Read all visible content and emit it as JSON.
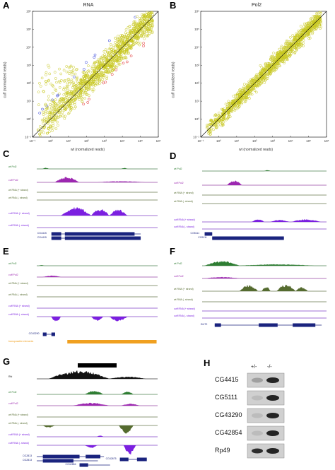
{
  "panels": {
    "A": {
      "letter": "A",
      "title": "RNA",
      "xlabel": "wt (normalized reads)",
      "ylabel": "cuff (normalized reads)"
    },
    "B": {
      "letter": "B",
      "title": "Pol2",
      "xlabel": "wt (normalized reads)",
      "ylabel": "cuff (normalized reads)"
    },
    "C": {
      "letter": "C",
      "tracks": [
        "wt Pol2",
        "cuff Pol2",
        "wt RNA (+ strand)",
        "wt RNA (- strand)",
        "cuff RNA (+ strand)",
        "cuff RNA (- strand)"
      ],
      "genes": [
        "CG4415",
        "CG4415"
      ]
    },
    "D": {
      "letter": "D",
      "tracks": [
        "wt Pol2",
        "cuff Pol2",
        "wt RNA (+ strand)",
        "wt RNA (- strand)",
        "cuff RNA (+ strand)",
        "cuff RNA (- strand)"
      ],
      "genes": [
        "CG5111"
      ]
    },
    "E": {
      "letter": "E",
      "tracks": [
        "wt Pol2",
        "cuff Pol2",
        "wt RNA (+ strand)",
        "wt RNA (- strand)",
        "cuff RNA (+ strand)",
        "cuff RNA (- strand)"
      ],
      "genes": [
        "CG43290"
      ],
      "te": "transposable elements"
    },
    "F": {
      "letter": "F",
      "tracks": [
        "wt Pol2",
        "cuff Pol2",
        "wt RNA (+ strand)",
        "wt RNA (- strand)",
        "cuff RNA (+ strand)",
        "cuff RNA (- strand)"
      ],
      "genes": [
        "GILT2"
      ]
    },
    "G": {
      "letter": "G",
      "tracks": [
        "Rhi",
        "wt Pol2",
        "cuff Pol2",
        "wt RNA (+ strand)",
        "wt RNA (- strand)",
        "cuff RNA (+ strand)",
        "cuff RNA (- strand)"
      ],
      "genes": [
        "CG2813",
        "CG2813",
        "CG42854",
        "CG42675"
      ]
    },
    "H": {
      "letter": "H",
      "lanes": [
        "+/-",
        "-/-"
      ],
      "rows": [
        "CG4415",
        "CG5111",
        "CG43290",
        "CG42854",
        "Rp49"
      ]
    }
  },
  "chart_data": [
    {
      "type": "scatter",
      "title": "RNA",
      "xlabel": "wt (normalized reads)",
      "ylabel": "cuff (normalized reads)",
      "xscale": "log",
      "yscale": "log",
      "xlim": [
        0.1,
        1000000
      ],
      "ylim": [
        0.1,
        1000000
      ],
      "xticks": [
        "10⁻¹",
        "10⁰",
        "10¹",
        "10²",
        "10³",
        "10⁴",
        "10⁵",
        "10⁶"
      ],
      "yticks": [
        "10⁻¹",
        "10⁰",
        "10¹",
        "10²",
        "10³",
        "10⁴",
        "10⁵",
        "10⁶"
      ],
      "series_colors": {
        "up": "#1f2fd6",
        "down": "#e02020",
        "unchanged": "#c8c820"
      },
      "diagonal": true
    },
    {
      "type": "scatter",
      "title": "Pol2",
      "xlabel": "wt (normalized reads)",
      "ylabel": "cuff (normalized reads)",
      "xscale": "log",
      "yscale": "log",
      "xlim": [
        0.1,
        1000000
      ],
      "ylim": [
        0.1,
        1000000
      ],
      "xticks": [
        "10⁻¹",
        "10⁰",
        "10¹",
        "10²",
        "10³",
        "10⁴",
        "10⁵",
        "10⁶"
      ],
      "yticks": [
        "10⁻¹",
        "10⁰",
        "10¹",
        "10²",
        "10³",
        "10⁴",
        "10⁵",
        "10⁶"
      ],
      "series_colors": {
        "up": "#1f2fd6",
        "down": "#e02020",
        "unchanged": "#c8c820"
      },
      "diagonal": true
    }
  ],
  "colors": {
    "pol2_wt": "#2e7d32",
    "pol2_cuff": "#9c27b0",
    "rna_wt": "#556b2f",
    "rna_cuff": "#7b1fe0",
    "gene": "#1a237e",
    "te": "#f0a020"
  }
}
